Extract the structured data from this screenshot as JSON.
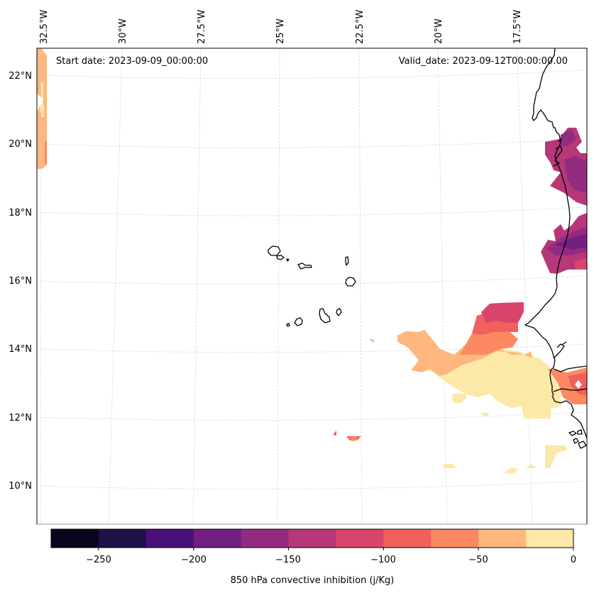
{
  "figure": {
    "annotations": {
      "start_date": "Start date: 2023-09-09_00:00:00",
      "valid_date": "Valid_date: 2023-09-12T00:00:00.00"
    },
    "lon_ticks": [
      "32.5°W",
      "30°W",
      "27.5°W",
      "25°W",
      "22.5°W",
      "20°W",
      "17.5°W"
    ],
    "lat_ticks": [
      "22°N",
      "20°N",
      "18°N",
      "16°N",
      "14°N",
      "12°N",
      "10°N"
    ],
    "colorbar": {
      "label": "850 hPa convective inhibition (j/Kg)",
      "tick_labels": [
        "−250",
        "−200",
        "−150",
        "−100",
        "−50",
        "0"
      ],
      "levels": [
        -275,
        -250,
        -225,
        -200,
        -175,
        -150,
        -125,
        -100,
        -75,
        -50,
        -25,
        0
      ],
      "colors": [
        "#07061c",
        "#1f1147",
        "#4a1079",
        "#721f81",
        "#932b80",
        "#b73779",
        "#d8456c",
        "#f1605d",
        "#fc8961",
        "#feb77e",
        "#fce8a7"
      ]
    }
  },
  "chart_data": {
    "type": "heatmap",
    "title": "",
    "variable": "850 hPa convective inhibition",
    "units": "j/Kg",
    "colormap": "magma",
    "value_range": [
      -275,
      0
    ],
    "lon_range": [
      "32.5°W",
      "16.5°W"
    ],
    "lat_range": [
      "9°N",
      "22.7°N"
    ],
    "lon_tick_labels": [
      "32.5°W",
      "30°W",
      "27.5°W",
      "25°W",
      "22.5°W",
      "20°W",
      "17.5°W"
    ],
    "lat_tick_labels": [
      "22°N",
      "20°N",
      "18°N",
      "16°N",
      "14°N",
      "12°N",
      "10°N"
    ],
    "gridlines": true,
    "colorbar_ticks": [
      -250,
      -200,
      -150,
      -100,
      -50,
      0
    ],
    "colorbar_placement": "bottom",
    "regions": [
      {
        "name": "west-edge strip (~32.5°W, 19.5–22.7°N)",
        "level_range": [
          -50,
          -25
        ]
      },
      {
        "name": "Mauritania coast (~17°W, 19–20.5°N)",
        "level_range": [
          -200,
          -125
        ]
      },
      {
        "name": "Mauritania coast (~16.5°W, 16–17.5°N)",
        "level_range": [
          -200,
          -100
        ]
      },
      {
        "name": "plume NW of Dakar (~19–20°W, 14–15°N)",
        "level_range": [
          -150,
          -50
        ]
      },
      {
        "name": "band west of Senegal (~17–23°W, 12–14°N)",
        "level_range": [
          -50,
          0
        ]
      },
      {
        "name": "Senegal/Gambia interior (~16.5°W, 13°N)",
        "level_range": [
          -100,
          -25
        ]
      },
      {
        "name": "small patches (~23°W, 11.5°N)",
        "level_range": [
          -100,
          -50
        ]
      },
      {
        "name": "scattered patches (~17–20°W, 10–11°N)",
        "level_range": [
          -25,
          0
        ]
      }
    ]
  }
}
